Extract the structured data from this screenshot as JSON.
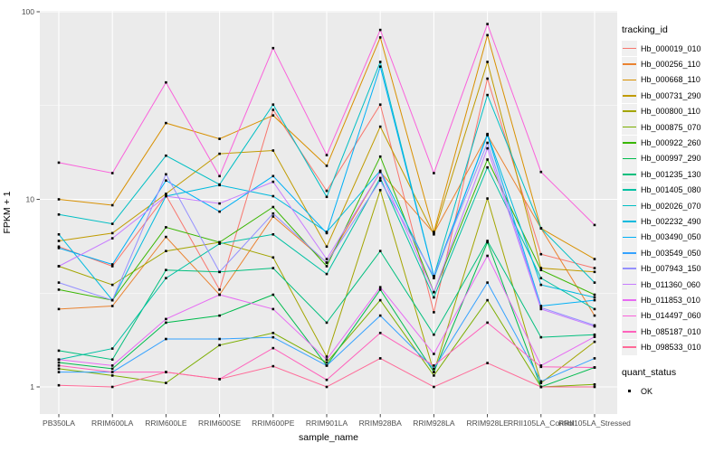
{
  "chart_data": {
    "type": "line",
    "title": "",
    "xlabel": "sample_name",
    "ylabel": "FPKM + 1",
    "y_scale": "log10",
    "ylim": [
      0.72,
      101
    ],
    "y_major_ticks": [
      1,
      10,
      100
    ],
    "y_minor_ticks": [
      3.162,
      31.623
    ],
    "grid": true,
    "x_categories": [
      "PB350LA",
      "RRIM600LA",
      "RRIM600LE",
      "RRIM600SE",
      "RRIM600PE",
      "RRIM901LA",
      "RRIM928BA",
      "RRIM928LA",
      "RRIM928LE",
      "RRII105LA_Control",
      "RRII105LA_Stressed"
    ],
    "series": [
      {
        "name": "Hb_000019_010",
        "color": "#F8766D",
        "values": [
          5.6,
          4.4,
          10.5,
          3.3,
          30,
          11.1,
          32,
          2.5,
          44,
          5.1,
          4.3
        ]
      },
      {
        "name": "Hb_000256_110",
        "color": "#EA8331",
        "values": [
          2.6,
          2.7,
          6.3,
          3.1,
          8.1,
          4.6,
          14,
          6.6,
          22,
          7.0,
          2.4
        ]
      },
      {
        "name": "Hb_000668_110",
        "color": "#D89000",
        "values": [
          10.0,
          9.3,
          25.5,
          21,
          28,
          15.1,
          73,
          6.7,
          75,
          7.0,
          4.8
        ]
      },
      {
        "name": "Hb_000731_290",
        "color": "#C09B00",
        "values": [
          6.0,
          6.6,
          10.7,
          17.5,
          18.2,
          5.6,
          24.4,
          6.5,
          54,
          4.3,
          4.1
        ]
      },
      {
        "name": "Hb_000800_110",
        "color": "#A3A500",
        "values": [
          4.4,
          3.5,
          5.3,
          5.9,
          4.9,
          1.45,
          11.2,
          1.2,
          10.1,
          1.05,
          1.74
        ]
      },
      {
        "name": "Hb_000875_070",
        "color": "#7CAE00",
        "values": [
          1.25,
          1.15,
          1.05,
          1.67,
          1.94,
          1.35,
          2.9,
          1.15,
          2.9,
          1.0,
          1.03
        ]
      },
      {
        "name": "Hb_000922_260",
        "color": "#39B600",
        "values": [
          3.3,
          2.9,
          7.1,
          5.9,
          9.1,
          4.4,
          16.9,
          3.2,
          16.3,
          4.2,
          3.1
        ]
      },
      {
        "name": "Hb_000997_290",
        "color": "#00BB4E",
        "values": [
          1.35,
          1.25,
          2.2,
          2.4,
          3.1,
          1.3,
          3.3,
          1.2,
          5.9,
          1.0,
          1.27
        ]
      },
      {
        "name": "Hb_001235_130",
        "color": "#00BF7D",
        "values": [
          1.56,
          1.4,
          4.2,
          4.1,
          4.3,
          2.2,
          5.3,
          1.9,
          6.0,
          1.84,
          1.9
        ]
      },
      {
        "name": "Hb_001405_080",
        "color": "#00C1A3",
        "values": [
          1.4,
          1.6,
          3.8,
          5.8,
          6.5,
          4.0,
          13.0,
          3.0,
          14.8,
          3.8,
          2.6
        ]
      },
      {
        "name": "Hb_002026_070",
        "color": "#00BFC4",
        "values": [
          8.3,
          7.4,
          17.1,
          12.0,
          32,
          10.3,
          54,
          3.9,
          36,
          7.0,
          3.6
        ]
      },
      {
        "name": "Hb_002232_490",
        "color": "#00BADE",
        "values": [
          6.5,
          2.9,
          10.4,
          11.9,
          10.4,
          6.7,
          14.2,
          3.8,
          22.3,
          3.5,
          3.0
        ]
      },
      {
        "name": "Hb_003490_050",
        "color": "#00B0F6",
        "values": [
          5.5,
          4.5,
          12.6,
          8.6,
          13.3,
          6.6,
          51,
          3.9,
          22.0,
          2.7,
          2.9
        ]
      },
      {
        "name": "Hb_003549_050",
        "color": "#35A2FF",
        "values": [
          1.2,
          1.2,
          1.8,
          1.8,
          1.84,
          1.3,
          2.4,
          1.25,
          3.6,
          1.07,
          1.42
        ]
      },
      {
        "name": "Hb_007943_150",
        "color": "#9590FF",
        "values": [
          3.6,
          2.9,
          13.6,
          4.1,
          8.4,
          4.6,
          12.6,
          3.9,
          20.0,
          2.65,
          2.13
        ]
      },
      {
        "name": "Hb_011360_060",
        "color": "#C77CFF",
        "values": [
          4.4,
          6.2,
          10.4,
          9.5,
          12.4,
          4.8,
          14.0,
          3.2,
          18.7,
          2.6,
          2.1
        ]
      },
      {
        "name": "Hb_011853_010",
        "color": "#E76BF3",
        "values": [
          1.4,
          1.3,
          2.3,
          3.1,
          2.6,
          1.4,
          3.4,
          1.5,
          5.0,
          1.3,
          1.85
        ]
      },
      {
        "name": "Hb_014497_060",
        "color": "#FA62DB",
        "values": [
          15.7,
          13.8,
          42,
          13.3,
          64,
          17.2,
          80,
          13.8,
          86,
          14.0,
          7.3
        ]
      },
      {
        "name": "Hb_085187_010",
        "color": "#FF62BC",
        "values": [
          1.3,
          1.2,
          1.2,
          1.1,
          1.61,
          1.09,
          1.94,
          1.3,
          2.2,
          1.28,
          1.27
        ]
      },
      {
        "name": "Hb_098533_010",
        "color": "#FF6A98",
        "values": [
          1.02,
          1.0,
          1.2,
          1.1,
          1.29,
          1.0,
          1.42,
          1.0,
          1.34,
          1.0,
          1.0
        ]
      }
    ],
    "points": {
      "shape": "square",
      "color": "#000000"
    },
    "legend": {
      "position": "right",
      "color_title": "tracking_id",
      "shape_title": "quant_status",
      "shape_entries": [
        "OK"
      ]
    },
    "style": {
      "panel_bg": "#EBEBEB",
      "grid_color": "#FFFFFF",
      "tick_color": "#333333",
      "tick_text_color": "#4D4D4D",
      "axis_title_color": "#000000",
      "legend_key_bg": "#F0F0F0"
    }
  }
}
